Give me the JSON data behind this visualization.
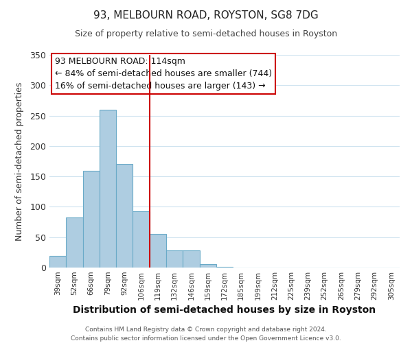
{
  "title": "93, MELBOURN ROAD, ROYSTON, SG8 7DG",
  "subtitle": "Size of property relative to semi-detached houses in Royston",
  "xlabel": "Distribution of semi-detached houses by size in Royston",
  "ylabel": "Number of semi-detached properties",
  "footer_line1": "Contains HM Land Registry data © Crown copyright and database right 2024.",
  "footer_line2": "Contains public sector information licensed under the Open Government Licence v3.0.",
  "bar_labels": [
    "39sqm",
    "52sqm",
    "66sqm",
    "79sqm",
    "92sqm",
    "106sqm",
    "119sqm",
    "132sqm",
    "146sqm",
    "159sqm",
    "172sqm",
    "185sqm",
    "199sqm",
    "212sqm",
    "225sqm",
    "239sqm",
    "252sqm",
    "265sqm",
    "279sqm",
    "292sqm",
    "305sqm"
  ],
  "bar_values": [
    19,
    82,
    159,
    260,
    170,
    93,
    55,
    28,
    28,
    6,
    1,
    0,
    0,
    0,
    0,
    0,
    0,
    0,
    0,
    0,
    0
  ],
  "bar_color": "#aecde1",
  "bar_edge_color": "#6aaac8",
  "vline_color": "#cc0000",
  "vline_index": 6,
  "ylim": [
    0,
    350
  ],
  "yticks": [
    0,
    50,
    100,
    150,
    200,
    250,
    300,
    350
  ],
  "annotation_title": "93 MELBOURN ROAD: 114sqm",
  "annotation_line1": "← 84% of semi-detached houses are smaller (744)",
  "annotation_line2": "16% of semi-detached houses are larger (143) →",
  "annotation_box_edge": "#cc0000",
  "grid_color": "#d0e4f0",
  "background_color": "#ffffff",
  "title_fontsize": 11,
  "subtitle_fontsize": 9,
  "xlabel_fontsize": 10,
  "ylabel_fontsize": 9,
  "xtick_fontsize": 7.5,
  "ytick_fontsize": 9,
  "annotation_fontsize": 9,
  "footer_fontsize": 6.5
}
